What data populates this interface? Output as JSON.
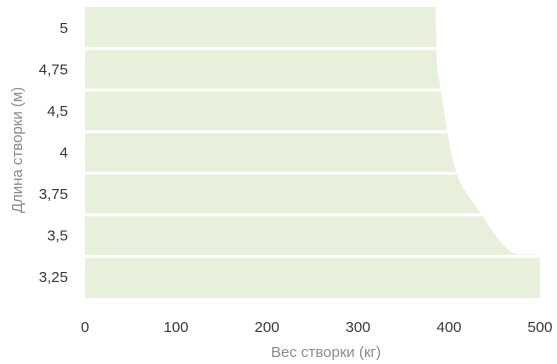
{
  "chart_data": {
    "type": "area",
    "title": "",
    "xlabel": "Вес створки (кг)",
    "ylabel": "Длина створки (м)",
    "xlim": [
      0,
      500
    ],
    "x_ticks": [
      "0",
      "100",
      "200",
      "300",
      "400",
      "500"
    ],
    "y_categories": [
      "5",
      "4,75",
      "4,5",
      "4",
      "3,75",
      "3,5",
      "3,25"
    ],
    "max_weight": [
      385,
      387,
      393,
      398,
      420,
      475,
      500
    ],
    "area_color": "#e6f0da",
    "grid": false
  }
}
